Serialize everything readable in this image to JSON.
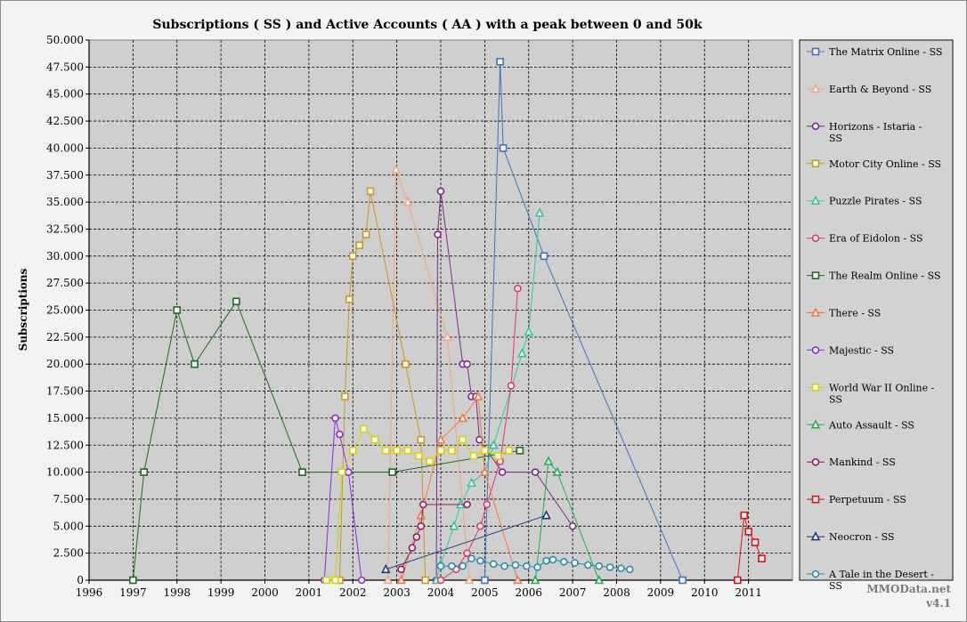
{
  "chart_data": {
    "type": "line",
    "title": "Subscriptions ( SS ) and Active Accounts ( AA ) with a peak between 0 and 50k",
    "ylabel": "Subscriptions",
    "xlabel": "",
    "xlim": [
      1996,
      2012
    ],
    "ylim": [
      0,
      50000
    ],
    "x_ticks": [
      "1996",
      "1997",
      "1998",
      "1999",
      "2000",
      "2001",
      "2002",
      "2003",
      "2004",
      "2005",
      "2006",
      "2007",
      "2008",
      "2009",
      "2010",
      "2011"
    ],
    "y_ticks": [
      "0",
      "2.500",
      "5.000",
      "7.500",
      "10.000",
      "12.500",
      "15.000",
      "17.500",
      "20.000",
      "22.500",
      "25.000",
      "27.500",
      "30.000",
      "32.500",
      "35.000",
      "37.500",
      "40.000",
      "42.500",
      "45.000",
      "47.500",
      "50.000"
    ],
    "grid": true,
    "legend_position": "right",
    "watermark": [
      "MMOData.net",
      "v4.1"
    ],
    "series": [
      {
        "name": "The Matrix Online - SS",
        "color": "#4472c4",
        "marker": "square",
        "points": [
          [
            2005.0,
            0
          ],
          [
            2005.35,
            48000
          ],
          [
            2005.42,
            40000
          ],
          [
            2006.35,
            30000
          ],
          [
            2009.5,
            0
          ]
        ]
      },
      {
        "name": "Earth & Beyond - SS",
        "color": "#f4a582",
        "marker": "triangle",
        "points": [
          [
            2002.8,
            0
          ],
          [
            2002.98,
            38000
          ],
          [
            2003.25,
            35000
          ],
          [
            2004.15,
            22500
          ],
          [
            2004.65,
            0
          ]
        ]
      },
      {
        "name": "Horizons - Istaria - SS",
        "color": "#7b2c8e",
        "marker": "circle",
        "points": [
          [
            2003.9,
            0
          ],
          [
            2003.93,
            32000
          ],
          [
            2004.0,
            36000
          ],
          [
            2004.5,
            20000
          ],
          [
            2004.6,
            20000
          ],
          [
            2004.7,
            17000
          ],
          [
            2004.8,
            17000
          ],
          [
            2004.88,
            13000
          ],
          [
            2005.4,
            10000
          ],
          [
            2006.15,
            10000
          ],
          [
            2007.0,
            5000
          ]
        ]
      },
      {
        "name": "Motor City Online - SS",
        "color": "#c59a1f",
        "marker": "square",
        "points": [
          [
            2001.7,
            0
          ],
          [
            2001.82,
            17000
          ],
          [
            2001.92,
            26000
          ],
          [
            2002.0,
            30000
          ],
          [
            2002.15,
            31000
          ],
          [
            2002.3,
            32000
          ],
          [
            2002.4,
            36000
          ],
          [
            2003.2,
            20000
          ],
          [
            2003.55,
            13000
          ],
          [
            2003.65,
            0
          ]
        ]
      },
      {
        "name": "Puzzle Pirates - SS",
        "color": "#2ec9a0",
        "marker": "triangle",
        "points": [
          [
            2003.9,
            0
          ],
          [
            2004.0,
            1500
          ],
          [
            2004.3,
            5000
          ],
          [
            2004.45,
            7000
          ],
          [
            2004.7,
            9000
          ],
          [
            2005.0,
            10000
          ],
          [
            2005.2,
            12500
          ],
          [
            2005.85,
            21000
          ],
          [
            2006.0,
            23000
          ],
          [
            2006.25,
            34000
          ]
        ]
      },
      {
        "name": "Era of Eidolon - SS",
        "color": "#e8336a",
        "marker": "circle",
        "points": [
          [
            2004.0,
            0
          ],
          [
            2004.35,
            1000
          ],
          [
            2004.6,
            2500
          ],
          [
            2004.9,
            5000
          ],
          [
            2005.05,
            7000
          ],
          [
            2005.35,
            11000
          ],
          [
            2005.6,
            18000
          ],
          [
            2005.75,
            27000
          ]
        ]
      },
      {
        "name": "The Realm Online - SS",
        "color": "#1e6b1e",
        "marker": "square",
        "points": [
          [
            1997.0,
            0
          ],
          [
            1997.25,
            10000
          ],
          [
            1998.0,
            25000
          ],
          [
            1998.4,
            20000
          ],
          [
            1999.35,
            25800
          ],
          [
            2000.85,
            10000
          ],
          [
            2002.9,
            10000
          ],
          [
            2005.8,
            12000
          ]
        ]
      },
      {
        "name": "There - SS",
        "color": "#f07840",
        "marker": "triangle",
        "points": [
          [
            2003.1,
            0
          ],
          [
            2003.55,
            6000
          ],
          [
            2004.0,
            13000
          ],
          [
            2004.5,
            15000
          ],
          [
            2004.85,
            17000
          ],
          [
            2005.0,
            10000
          ],
          [
            2005.75,
            0
          ]
        ]
      },
      {
        "name": "Majestic - SS",
        "color": "#8a2be2",
        "marker": "circle",
        "points": [
          [
            2001.35,
            0
          ],
          [
            2001.6,
            15000
          ],
          [
            2001.7,
            13500
          ],
          [
            2001.9,
            10000
          ],
          [
            2002.2,
            0
          ]
        ]
      },
      {
        "name": "World War II Online - SS",
        "color": "#d4d400",
        "marker": "square",
        "points": [
          [
            2001.4,
            0
          ],
          [
            2001.6,
            0
          ],
          [
            2001.75,
            10000
          ],
          [
            2002.0,
            12000
          ],
          [
            2002.25,
            14000
          ],
          [
            2002.5,
            13000
          ],
          [
            2002.75,
            12000
          ],
          [
            2003.0,
            12000
          ],
          [
            2003.25,
            12000
          ],
          [
            2003.5,
            11500
          ],
          [
            2003.75,
            11000
          ],
          [
            2004.0,
            12000
          ],
          [
            2004.25,
            12000
          ],
          [
            2004.5,
            13000
          ],
          [
            2004.75,
            11500
          ],
          [
            2005.0,
            12000
          ],
          [
            2005.3,
            11500
          ],
          [
            2005.55,
            12000
          ]
        ]
      },
      {
        "name": "Auto Assault - SS",
        "color": "#22b14c",
        "marker": "triangle",
        "points": [
          [
            2006.15,
            0
          ],
          [
            2006.45,
            11000
          ],
          [
            2006.65,
            10000
          ],
          [
            2007.6,
            0
          ]
        ]
      },
      {
        "name": "Mankind - SS",
        "color": "#a0165a",
        "marker": "circle",
        "points": [
          [
            2003.1,
            1000
          ],
          [
            2003.35,
            3000
          ],
          [
            2003.45,
            4000
          ],
          [
            2003.55,
            5000
          ],
          [
            2003.6,
            7000
          ],
          [
            2004.6,
            7000
          ]
        ]
      },
      {
        "name": "Perpetuum - SS",
        "color": "#e01010",
        "marker": "square",
        "points": [
          [
            2010.75,
            0
          ],
          [
            2010.9,
            6000
          ],
          [
            2011.0,
            4500
          ],
          [
            2011.15,
            3500
          ],
          [
            2011.3,
            2000
          ]
        ]
      },
      {
        "name": "Neocron - SS",
        "color": "#1f3a7a",
        "marker": "triangle",
        "points": [
          [
            2002.75,
            1000
          ],
          [
            2006.4,
            6000
          ]
        ]
      },
      {
        "name": "A Tale in the Desert - SS",
        "color": "#2b8cae",
        "marker": "circle",
        "points": [
          [
            2004.0,
            1300
          ],
          [
            2004.25,
            1300
          ],
          [
            2004.5,
            1300
          ],
          [
            2004.7,
            2000
          ],
          [
            2004.9,
            1800
          ],
          [
            2005.2,
            1500
          ],
          [
            2005.45,
            1300
          ],
          [
            2005.7,
            1400
          ],
          [
            2005.95,
            1300
          ],
          [
            2006.2,
            1200
          ],
          [
            2006.4,
            1800
          ],
          [
            2006.55,
            1900
          ],
          [
            2006.8,
            1700
          ],
          [
            2007.05,
            1600
          ],
          [
            2007.35,
            1400
          ],
          [
            2007.6,
            1300
          ],
          [
            2007.85,
            1200
          ],
          [
            2008.1,
            1100
          ],
          [
            2008.3,
            1000
          ]
        ]
      }
    ]
  }
}
